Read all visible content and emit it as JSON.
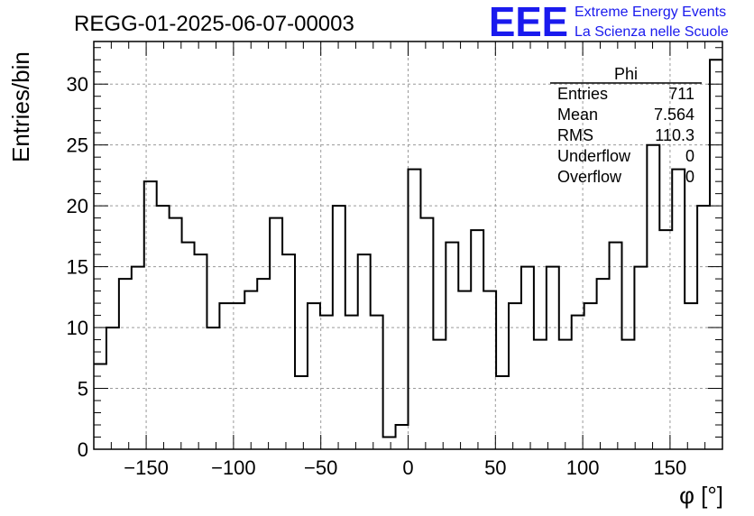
{
  "chart_data": {
    "type": "bar",
    "histogram": true,
    "title": "REGG-01-2025-06-07-00003",
    "xlabel": "φ [°]",
    "ylabel": "Entries/bin",
    "xlim": [
      -180,
      180
    ],
    "ylim": [
      0,
      33.5
    ],
    "bin_width": 7.2,
    "grid": true,
    "x_ticks": [
      -150,
      -100,
      -50,
      0,
      50,
      100,
      150
    ],
    "x_tick_labels": [
      "−150",
      "−100",
      "−50",
      "0",
      "50",
      "100",
      "150"
    ],
    "y_ticks": [
      0,
      5,
      10,
      15,
      20,
      25,
      30
    ],
    "y_tick_labels": [
      "0",
      "5",
      "10",
      "15",
      "20",
      "25",
      "30"
    ],
    "values": [
      7,
      10,
      14,
      15,
      22,
      20,
      19,
      17,
      16,
      10,
      12,
      12,
      13,
      14,
      19,
      16,
      6,
      12,
      11,
      20,
      11,
      16,
      11,
      1,
      2,
      23,
      19,
      9,
      17,
      13,
      18,
      13,
      6,
      12,
      15,
      9,
      15,
      9,
      11,
      12,
      14,
      17,
      9,
      15,
      25,
      18,
      23,
      12,
      20,
      32
    ],
    "stats_box": {
      "name": "Phi",
      "rows": [
        {
          "label": "Entries",
          "value": "711"
        },
        {
          "label": "Mean",
          "value": "7.564"
        },
        {
          "label": "RMS",
          "value": "110.3"
        },
        {
          "label": "Underflow",
          "value": "0"
        },
        {
          "label": "Overflow",
          "value": "0"
        }
      ]
    }
  },
  "logo": {
    "mark": "EEE",
    "line1": "Extreme Energy Events",
    "line2": "La Scienza nelle Scuole"
  },
  "colors": {
    "line": "#000000",
    "grid": "#9a9a9a",
    "logo": "#1a1aee"
  }
}
